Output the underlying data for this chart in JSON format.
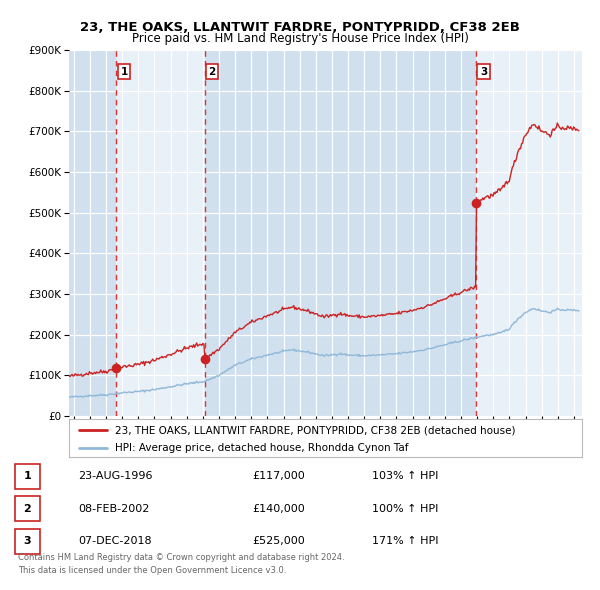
{
  "title": "23, THE OAKS, LLANTWIT FARDRE, PONTYPRIDD, CF38 2EB",
  "subtitle": "Price paid vs. HM Land Registry's House Price Index (HPI)",
  "hpi_label": "HPI: Average price, detached house, Rhondda Cynon Taf",
  "price_label": "23, THE OAKS, LLANTWIT FARDRE, PONTYPRIDD, CF38 2EB (detached house)",
  "sales": [
    {
      "date_num": 1996.64,
      "price": 117000,
      "label": "1",
      "date_str": "23-AUG-1996",
      "hpi_pct": "103% ↑ HPI"
    },
    {
      "date_num": 2002.1,
      "price": 140000,
      "label": "2",
      "date_str": "08-FEB-2002",
      "hpi_pct": "100% ↑ HPI"
    },
    {
      "date_num": 2018.92,
      "price": 525000,
      "label": "3",
      "date_str": "07-DEC-2018",
      "hpi_pct": "171% ↑ HPI"
    }
  ],
  "sale_prices": [
    "£117,000",
    "£140,000",
    "£525,000"
  ],
  "footer1": "Contains HM Land Registry data © Crown copyright and database right 2024.",
  "footer2": "This data is licensed under the Open Government Licence v3.0.",
  "bg_color": "#ffffff",
  "plot_bg": "#e8f0f8",
  "stripe_color": "#d0e0ef",
  "hpi_line_color": "#90b8d8",
  "price_line_color": "#cc2222",
  "marker_color": "#cc2222",
  "vline_color": "#dd3333",
  "grid_color": "#ffffff",
  "ylim": [
    0,
    900000
  ],
  "xlim_start": 1993.7,
  "xlim_end": 2025.5,
  "hpi_seed": 42
}
